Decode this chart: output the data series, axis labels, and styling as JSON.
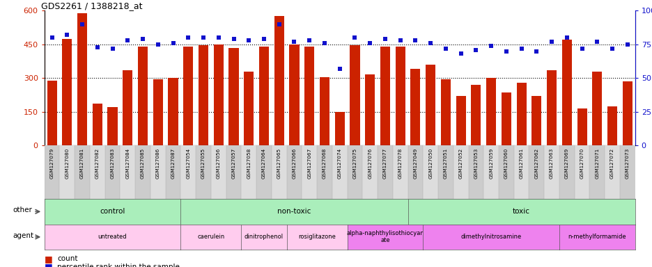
{
  "title": "GDS2261 / 1388218_at",
  "samples": [
    "GSM127079",
    "GSM127080",
    "GSM127081",
    "GSM127082",
    "GSM127083",
    "GSM127084",
    "GSM127085",
    "GSM127086",
    "GSM127087",
    "GSM127054",
    "GSM127055",
    "GSM127056",
    "GSM127057",
    "GSM127058",
    "GSM127064",
    "GSM127065",
    "GSM127066",
    "GSM127067",
    "GSM127068",
    "GSM127074",
    "GSM127075",
    "GSM127076",
    "GSM127077",
    "GSM127078",
    "GSM127049",
    "GSM127050",
    "GSM127051",
    "GSM127052",
    "GSM127053",
    "GSM127059",
    "GSM127060",
    "GSM127061",
    "GSM127062",
    "GSM127063",
    "GSM127069",
    "GSM127070",
    "GSM127071",
    "GSM127072",
    "GSM127073"
  ],
  "counts": [
    290,
    475,
    590,
    185,
    170,
    335,
    440,
    295,
    300,
    440,
    445,
    450,
    435,
    330,
    440,
    575,
    450,
    440,
    305,
    150,
    445,
    315,
    440,
    440,
    340,
    360,
    295,
    220,
    270,
    300,
    235,
    280,
    220,
    335,
    470,
    165,
    330,
    175,
    285
  ],
  "percentiles": [
    80,
    82,
    90,
    73,
    72,
    78,
    79,
    75,
    76,
    80,
    80,
    80,
    79,
    78,
    79,
    90,
    77,
    78,
    76,
    57,
    80,
    76,
    79,
    78,
    78,
    76,
    72,
    68,
    71,
    74,
    70,
    72,
    70,
    77,
    80,
    72,
    77,
    72,
    75
  ],
  "ylim_left": [
    0,
    600
  ],
  "ylim_right": [
    0,
    100
  ],
  "yticks_left": [
    0,
    150,
    300,
    450,
    600
  ],
  "yticks_right": [
    0,
    25,
    50,
    75,
    100
  ],
  "ytick_right_labels": [
    "0",
    "25",
    "50",
    "75",
    "100%"
  ],
  "bar_color": "#cc2200",
  "dot_color": "#1111cc",
  "other_row": [
    {
      "label": "control",
      "start": 0,
      "end": 9,
      "color": "#aaeebb"
    },
    {
      "label": "non-toxic",
      "start": 9,
      "end": 24,
      "color": "#aaeebb"
    },
    {
      "label": "toxic",
      "start": 24,
      "end": 39,
      "color": "#aaeebb"
    }
  ],
  "agent_row": [
    {
      "label": "untreated",
      "start": 0,
      "end": 9,
      "color": "#ffccee"
    },
    {
      "label": "caerulein",
      "start": 9,
      "end": 13,
      "color": "#ffccee"
    },
    {
      "label": "dinitrophenol",
      "start": 13,
      "end": 16,
      "color": "#ffccee"
    },
    {
      "label": "rosiglitazone",
      "start": 16,
      "end": 20,
      "color": "#ffccee"
    },
    {
      "label": "alpha-naphthylisothiocyan\nate",
      "start": 20,
      "end": 25,
      "color": "#ee82ee"
    },
    {
      "label": "dimethylnitrosamine",
      "start": 25,
      "end": 34,
      "color": "#ee82ee"
    },
    {
      "label": "n-methylformamide",
      "start": 34,
      "end": 39,
      "color": "#ee82ee"
    }
  ]
}
